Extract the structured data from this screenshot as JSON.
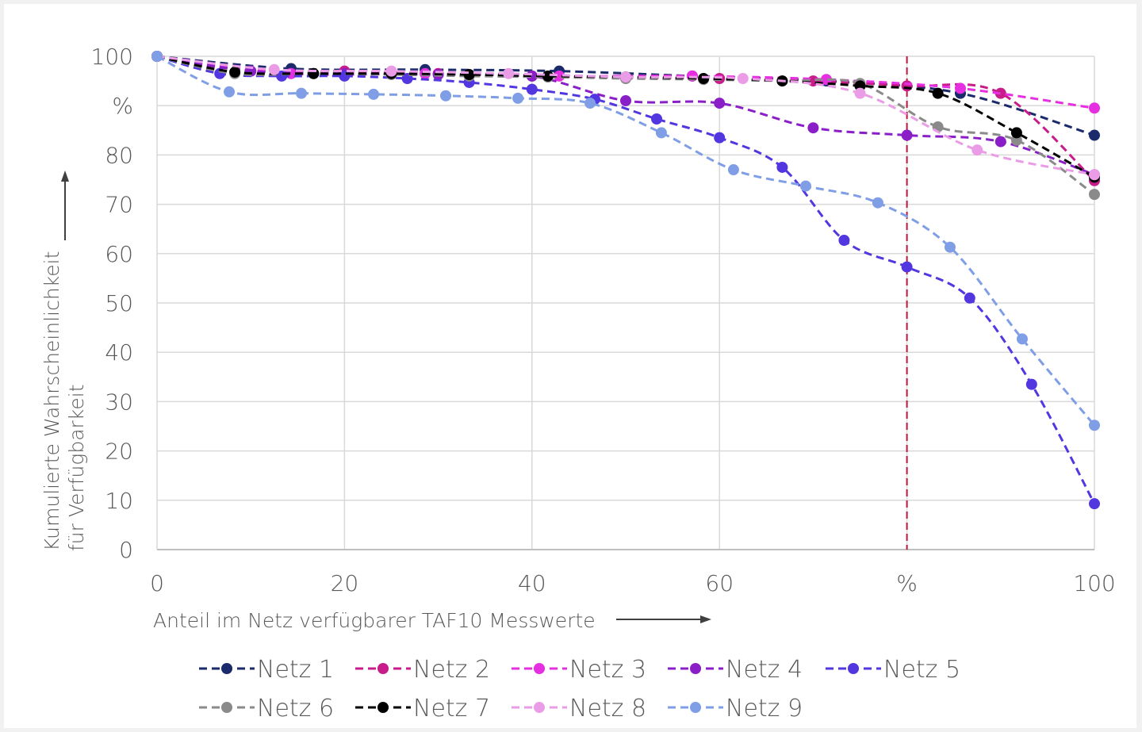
{
  "chart_data": {
    "type": "line",
    "title": "",
    "xlabel": "Anteil im Netz verfügbarer TAF10 Messwerte",
    "ylabel": [
      "Kumulierte Wahrscheinlichkeit",
      "für Verfügbarkeit"
    ],
    "xlim": [
      0,
      100
    ],
    "ylim": [
      0,
      100
    ],
    "x_ticks": [
      "0",
      "20",
      "40",
      "60",
      "%",
      "100"
    ],
    "y_ticks": [
      "0",
      "10",
      "20",
      "30",
      "40",
      "50",
      "60",
      "70",
      "80",
      "%",
      "100"
    ],
    "grid": "horizontal and vertical",
    "legend_position": "bottom",
    "reference_line": {
      "x": 80,
      "color": "#c0143c"
    },
    "series": [
      {
        "name": "Netz 1",
        "color": "#1b2a6b",
        "points": [
          [
            0,
            100
          ],
          [
            14.3,
            97.5
          ],
          [
            28.6,
            97.3
          ],
          [
            42.9,
            97
          ],
          [
            57.1,
            96
          ],
          [
            71.4,
            95
          ],
          [
            85.7,
            92.5
          ],
          [
            100,
            84
          ]
        ]
      },
      {
        "name": "Netz 2",
        "color": "#c71c8a",
        "points": [
          [
            0,
            100
          ],
          [
            10,
            97
          ],
          [
            20,
            97
          ],
          [
            30,
            96.5
          ],
          [
            40,
            96
          ],
          [
            50,
            95.7
          ],
          [
            60,
            95.5
          ],
          [
            70,
            95
          ],
          [
            80,
            94
          ],
          [
            90,
            92.5
          ],
          [
            100,
            74.8
          ]
        ]
      },
      {
        "name": "Netz 3",
        "color": "#e62fe0",
        "points": [
          [
            0,
            100
          ],
          [
            14.3,
            96.5
          ],
          [
            28.6,
            96.5
          ],
          [
            42.9,
            96
          ],
          [
            57.1,
            96
          ],
          [
            71.4,
            95.3
          ],
          [
            85.7,
            93.5
          ],
          [
            100,
            89.5
          ]
        ]
      },
      {
        "name": "Netz 4",
        "color": "#8a1fc8",
        "points": [
          [
            0,
            100
          ],
          [
            10,
            97
          ],
          [
            20,
            96.5
          ],
          [
            30,
            96.3
          ],
          [
            40,
            96
          ],
          [
            50,
            91
          ],
          [
            60,
            90.5
          ],
          [
            70,
            85.5
          ],
          [
            80,
            84
          ],
          [
            90,
            82.7
          ],
          [
            100,
            76
          ]
        ]
      },
      {
        "name": "Netz 5",
        "color": "#5236e0",
        "points": [
          [
            0,
            100
          ],
          [
            6.7,
            96.5
          ],
          [
            13.3,
            96
          ],
          [
            20,
            96
          ],
          [
            26.7,
            95.5
          ],
          [
            33.3,
            94.7
          ],
          [
            40,
            93.3
          ],
          [
            46.7,
            91.3
          ],
          [
            53.3,
            87.3
          ],
          [
            60,
            83.5
          ],
          [
            66.7,
            77.5
          ],
          [
            73.3,
            62.7
          ],
          [
            80,
            57.3
          ],
          [
            86.7,
            51
          ],
          [
            93.3,
            33.5
          ],
          [
            100,
            9.3
          ]
        ]
      },
      {
        "name": "Netz 6",
        "color": "#8a8a8a",
        "points": [
          [
            0,
            100
          ],
          [
            8.3,
            96.5
          ],
          [
            16.7,
            96.5
          ],
          [
            25,
            96.3
          ],
          [
            33.3,
            96
          ],
          [
            41.7,
            95.8
          ],
          [
            50,
            95.5
          ],
          [
            58.3,
            95.3
          ],
          [
            66.7,
            95
          ],
          [
            75,
            94.5
          ],
          [
            83.3,
            85.7
          ],
          [
            91.7,
            83
          ],
          [
            100,
            72
          ]
        ]
      },
      {
        "name": "Netz 7",
        "color": "#000000",
        "points": [
          [
            0,
            100
          ],
          [
            8.3,
            96.8
          ],
          [
            16.7,
            96.5
          ],
          [
            25,
            96.5
          ],
          [
            33.3,
            96.3
          ],
          [
            41.7,
            96
          ],
          [
            50,
            95.8
          ],
          [
            58.3,
            95.5
          ],
          [
            66.7,
            95
          ],
          [
            75,
            94
          ],
          [
            83.3,
            92.5
          ],
          [
            91.7,
            84.5
          ],
          [
            100,
            75.5
          ]
        ]
      },
      {
        "name": "Netz 8",
        "color": "#ea9de6",
        "points": [
          [
            0,
            100
          ],
          [
            12.5,
            97.3
          ],
          [
            25,
            97
          ],
          [
            37.5,
            96.5
          ],
          [
            50,
            95.8
          ],
          [
            62.5,
            95.5
          ],
          [
            75,
            92.5
          ],
          [
            87.5,
            81
          ],
          [
            100,
            76
          ]
        ]
      },
      {
        "name": "Netz 9",
        "color": "#7f9ee6",
        "points": [
          [
            0,
            100
          ],
          [
            7.7,
            92.8
          ],
          [
            15.4,
            92.5
          ],
          [
            23.1,
            92.3
          ],
          [
            30.8,
            92
          ],
          [
            38.5,
            91.5
          ],
          [
            46.2,
            90.5
          ],
          [
            53.8,
            84.5
          ],
          [
            61.5,
            77
          ],
          [
            69.2,
            73.7
          ],
          [
            76.9,
            70.3
          ],
          [
            84.6,
            61.3
          ],
          [
            92.3,
            42.7
          ],
          [
            100,
            25.2
          ]
        ]
      }
    ]
  }
}
